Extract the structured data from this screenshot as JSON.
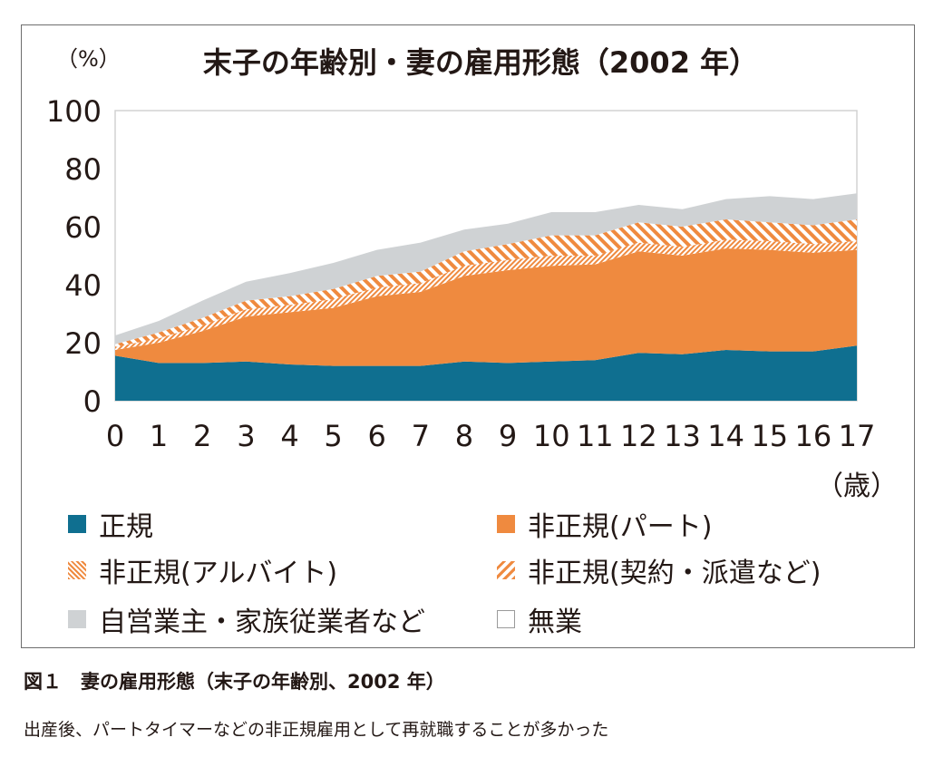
{
  "chart_data": {
    "type": "area",
    "stacked": true,
    "title": "末子の年齢別・妻の雇用形態（2002 年）",
    "y_unit_label": "（%）",
    "x_unit_label": "（歳）",
    "x": [
      0,
      1,
      2,
      3,
      4,
      5,
      6,
      7,
      8,
      9,
      10,
      11,
      12,
      13,
      14,
      15,
      16,
      17
    ],
    "x_tick_labels": [
      "0",
      "1",
      "2",
      "3",
      "4",
      "5",
      "6",
      "7",
      "8",
      "9",
      "10",
      "11",
      "12",
      "13",
      "14",
      "15",
      "16",
      "17"
    ],
    "y_ticks": [
      "0",
      "20",
      "40",
      "60",
      "80",
      "100"
    ],
    "ylim": [
      0,
      100
    ],
    "grid": false,
    "legend_position": "bottom",
    "series": [
      {
        "key": "regular",
        "name": "正規",
        "color": "#0f6f90",
        "values": [
          15.5,
          13,
          13,
          13.5,
          12.5,
          12,
          12,
          12,
          13.5,
          13,
          13.5,
          14,
          16.5,
          16,
          17.5,
          17,
          17,
          19
        ]
      },
      {
        "key": "part",
        "name": "非正規(パート)",
        "color": "#ef8a3f",
        "values": [
          2,
          7,
          11,
          15.5,
          18,
          20,
          24,
          25.5,
          29.5,
          32,
          33,
          33,
          35,
          34,
          35,
          35,
          34,
          33
        ]
      },
      {
        "key": "arbeit",
        "name": "非正規(アルバイト)",
        "color": "#ef8a3f",
        "values": [
          1,
          1.5,
          2,
          2.5,
          2.5,
          3,
          3,
          3,
          3.5,
          3.5,
          3.5,
          3,
          3,
          3,
          3,
          3,
          3,
          3
        ]
      },
      {
        "key": "contract",
        "name": "非正規(契約・派遣など)",
        "color": "#ef8a3f",
        "values": [
          1,
          2,
          2.5,
          3,
          3,
          3.5,
          4,
          4,
          5,
          5.5,
          7,
          7,
          7,
          7,
          7,
          6.5,
          6.5,
          7.5
        ]
      },
      {
        "key": "self",
        "name": "自営業主・家族従業者など",
        "color": "#cfd2d4",
        "values": [
          3,
          4,
          6,
          6.5,
          8,
          9,
          9,
          10,
          7.5,
          7,
          8,
          8,
          6,
          6,
          7,
          9,
          9,
          9
        ]
      },
      {
        "key": "none",
        "name": "無業",
        "color": "#ffffff",
        "values": [
          77.5,
          72.5,
          65.5,
          59,
          56,
          52.5,
          48,
          45.5,
          41,
          39,
          35,
          35,
          32.5,
          34,
          30.5,
          29.5,
          30.5,
          28.5
        ]
      }
    ]
  },
  "caption": {
    "figure_title": "図１　妻の雇用形態（末子の年齢別、2002 年）",
    "description": "出産後、パートタイマーなどの非正規雇用として再就職することが多かった"
  }
}
